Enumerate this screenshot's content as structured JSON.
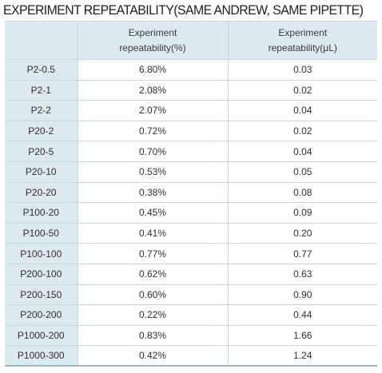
{
  "title": "EXPERIMENT REPEATABILITY(SAME ANDREW, SAME PIPETTE)",
  "columns": {
    "c1": "",
    "c2_line1": "Experiment",
    "c2_line2": "repeatability(%)",
    "c3_line1": "Experiment",
    "c3_line2": "repeatability(μL)"
  },
  "rows": [
    {
      "pipette": "P2-0.5",
      "pct": "6.80%",
      "ul": "0.03"
    },
    {
      "pipette": "P2-1",
      "pct": "2.08%",
      "ul": "0.02"
    },
    {
      "pipette": "P2-2",
      "pct": "2.07%",
      "ul": "0.04"
    },
    {
      "pipette": "P20-2",
      "pct": "0.72%",
      "ul": "0.02"
    },
    {
      "pipette": "P20-5",
      "pct": "0.70%",
      "ul": "0.04"
    },
    {
      "pipette": "P20-10",
      "pct": "0.53%",
      "ul": "0.05"
    },
    {
      "pipette": "P20-20",
      "pct": "0.38%",
      "ul": "0.08"
    },
    {
      "pipette": "P100-20",
      "pct": "0.45%",
      "ul": "0.09"
    },
    {
      "pipette": "P100-50",
      "pct": "0.41%",
      "ul": "0.20"
    },
    {
      "pipette": "P100-100",
      "pct": "0.77%",
      "ul": "0.77"
    },
    {
      "pipette": "P200-100",
      "pct": "0.62%",
      "ul": "0.63"
    },
    {
      "pipette": "P200-150",
      "pct": "0.60%",
      "ul": "0.90"
    },
    {
      "pipette": "P200-200",
      "pct": "0.22%",
      "ul": "0.44"
    },
    {
      "pipette": "P1000-200",
      "pct": "0.83%",
      "ul": "1.66"
    },
    {
      "pipette": "P1000-300",
      "pct": "0.42%",
      "ul": "1.24"
    }
  ],
  "colors": {
    "header_bg": "#dde9f0",
    "grid_line": "#c9d7e0",
    "bottom_rule": "#9fb6c4"
  }
}
